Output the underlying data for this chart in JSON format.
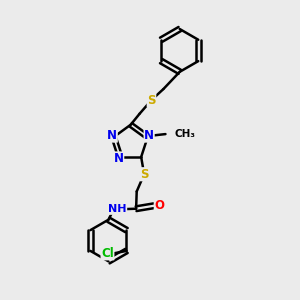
{
  "background_color": "#ebebeb",
  "bond_color": "#000000",
  "bond_width": 1.8,
  "atom_colors": {
    "N": "#0000ee",
    "S": "#ccaa00",
    "O": "#ff0000",
    "Cl": "#00bb00",
    "C": "#000000",
    "H": "#666666"
  },
  "font_size_atom": 8.5,
  "font_size_small": 7.5,
  "figsize": [
    3.0,
    3.0
  ],
  "dpi": 100
}
